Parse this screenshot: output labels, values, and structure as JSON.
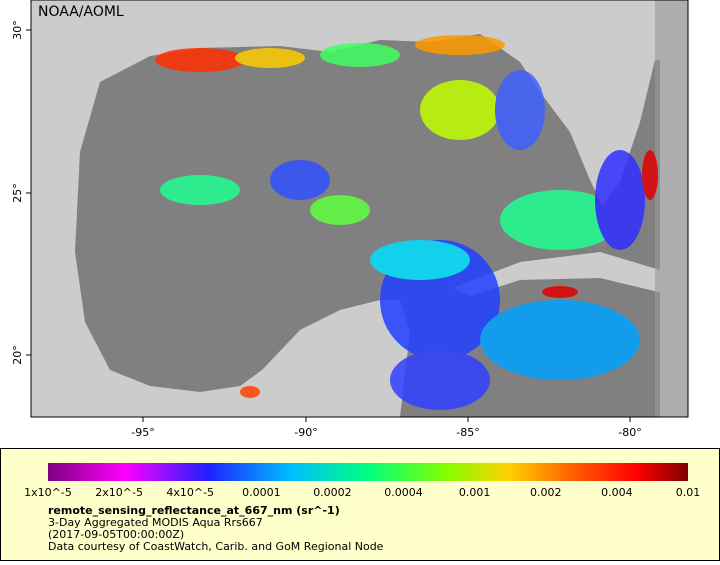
{
  "header": {
    "title": "NOAA/AOML"
  },
  "map": {
    "lon_labels": [
      "-95°",
      "-90°",
      "-85°",
      "-80°"
    ],
    "lat_labels": [
      "30°",
      "25°",
      "20°"
    ]
  },
  "colorbar": {
    "labels": [
      "1x10^-5",
      "2x10^-5",
      "4x10^-5",
      "0.0001",
      "0.0002",
      "0.0004",
      "0.001",
      "0.002",
      "0.004",
      "0.01"
    ]
  },
  "legend": {
    "variable": "remote_sensing_reflectance_at_667_nm (sr^-1)",
    "lines": [
      "3-Day Aggregated MODIS Aqua Rrs667",
      "(2017-09-05T00:00:00Z)",
      "Data courtesy of CoastWatch, Carib. and GoM Regional Node"
    ]
  }
}
